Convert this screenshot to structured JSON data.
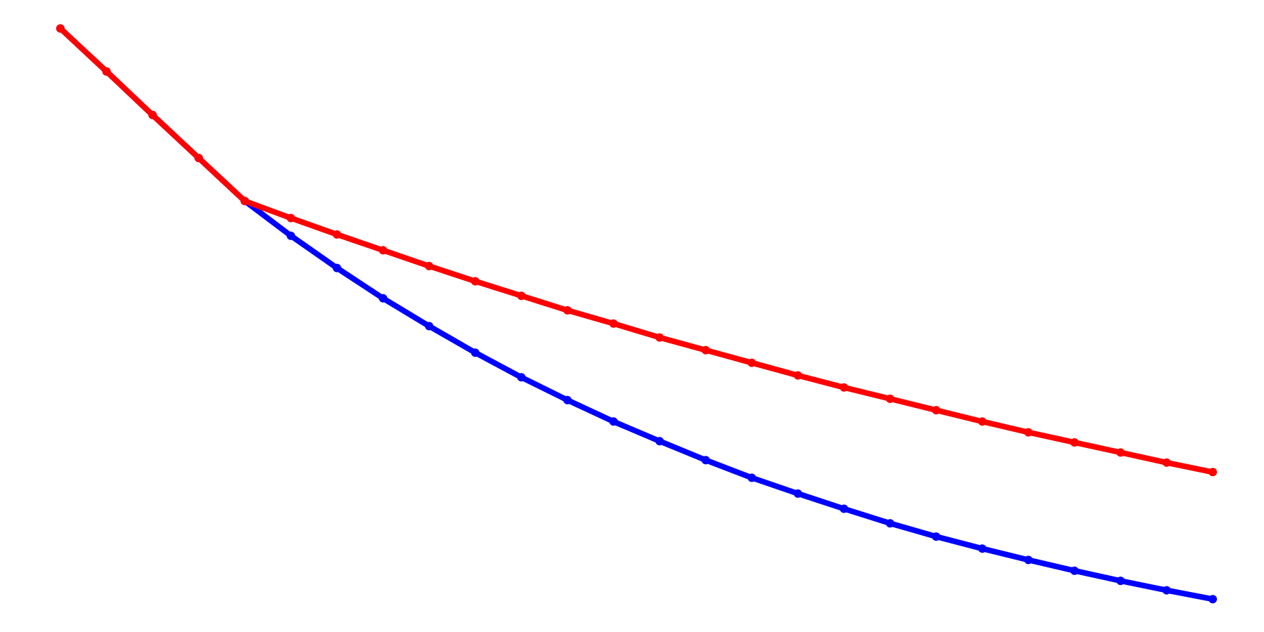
{
  "chart_data": {
    "type": "line",
    "x": [
      0,
      4,
      8,
      12,
      16,
      20,
      24,
      28,
      32,
      36,
      40,
      44,
      48,
      52,
      56,
      60,
      64,
      68,
      72,
      76,
      80,
      84,
      88,
      92,
      96,
      100
    ],
    "xlim": [
      0,
      100
    ],
    "ylim": [
      0,
      100
    ],
    "grid": false,
    "series": [
      {
        "color": "#0000ff",
        "values": [
          95.5,
          88.7,
          81.8,
          75.0,
          68.2,
          62.7,
          57.6,
          52.8,
          48.4,
          44.2,
          40.3,
          36.7,
          33.3,
          30.2,
          27.2,
          24.4,
          21.9,
          19.5,
          17.2,
          15.1,
          13.2,
          11.4,
          9.7,
          8.1,
          6.6,
          5.2
        ]
      },
      {
        "color": "#ff0000",
        "values": [
          95.5,
          88.7,
          81.8,
          75.0,
          68.2,
          65.5,
          62.9,
          60.4,
          57.9,
          55.5,
          53.2,
          50.9,
          48.8,
          46.6,
          44.6,
          42.6,
          40.6,
          38.7,
          36.9,
          35.1,
          33.3,
          31.6,
          30.0,
          28.4,
          26.8,
          25.3
        ]
      }
    ]
  }
}
